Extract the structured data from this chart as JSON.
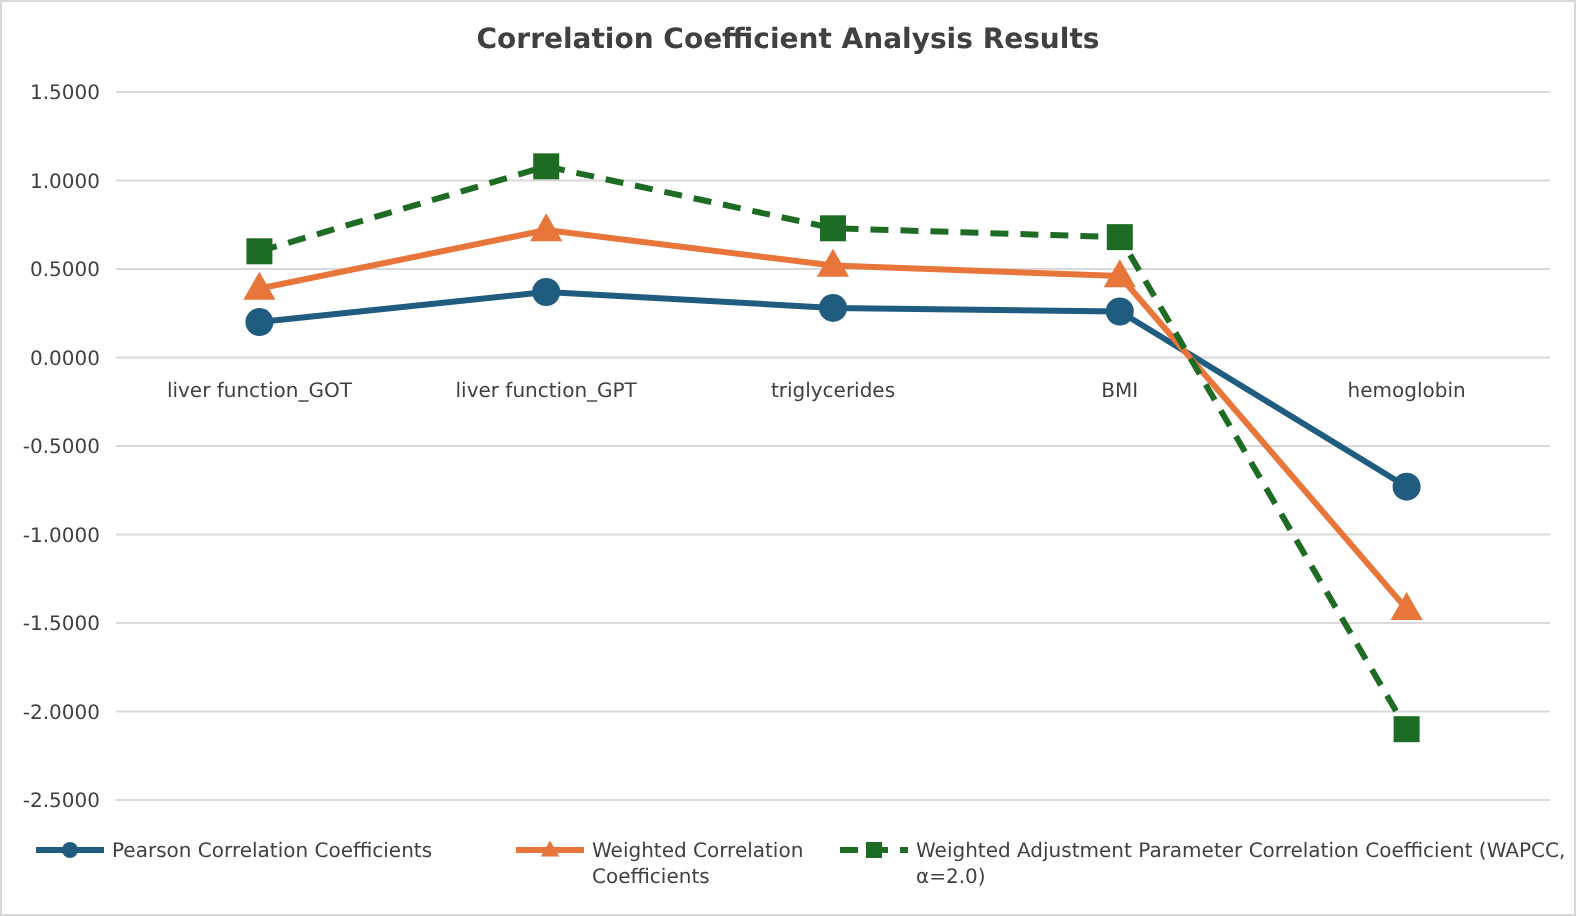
{
  "chart_data": {
    "type": "line",
    "title": "Correlation Coefficient Analysis Results",
    "categories": [
      "liver function_GOT",
      "liver function_GPT",
      "triglycerides",
      "BMI",
      "hemoglobin"
    ],
    "series": [
      {
        "name": "Pearson Correlation Coefficients",
        "color": "#1f5c7f",
        "values": [
          0.2,
          0.37,
          0.28,
          0.26,
          -0.73
        ],
        "marker": "circle",
        "line_style": "solid"
      },
      {
        "name": "Weighted Correlation Coefficients",
        "color": "#e8763a",
        "values": [
          0.39,
          0.72,
          0.52,
          0.46,
          -1.42
        ],
        "marker": "triangle",
        "line_style": "solid"
      },
      {
        "name": "Weighted Adjustment Parameter Correlation Coefficient (WAPCC, α=2.0)",
        "color": "#1e6b23",
        "values": [
          0.6,
          1.08,
          0.73,
          0.68,
          -2.1
        ],
        "marker": "square",
        "line_style": "dashed"
      }
    ],
    "ylim": [
      -2.5,
      1.5
    ],
    "yticks": [
      {
        "value": -2.5,
        "label": "-2.5000"
      },
      {
        "value": -2,
        "label": "-2.0000"
      },
      {
        "value": -1.5,
        "label": "-1.5000"
      },
      {
        "value": -1,
        "label": "-1.0000"
      },
      {
        "value": -0.5,
        "label": "-0.5000"
      },
      {
        "value": 0,
        "label": "0.0000"
      },
      {
        "value": 0.5,
        "label": "0.5000"
      },
      {
        "value": 1,
        "label": "1.0000"
      },
      {
        "value": 1.5,
        "label": "1.5000"
      }
    ],
    "grid": "y",
    "legend": "bottom"
  }
}
